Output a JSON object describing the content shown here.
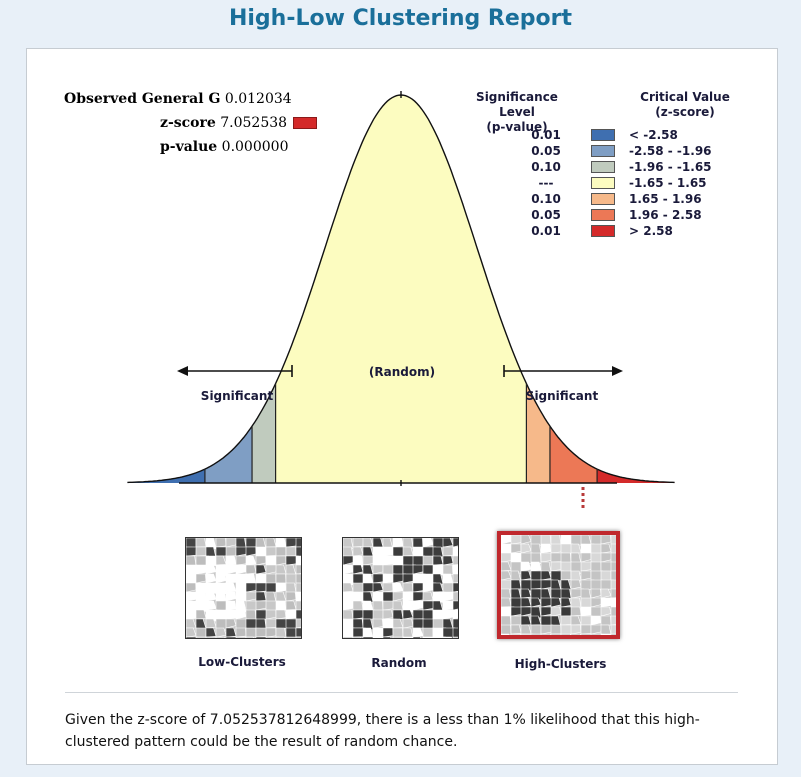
{
  "title": "High-Low Clustering Report",
  "stats": {
    "observed_label": "Observed General G",
    "observed_value": "0.012034",
    "z_label": "z-score",
    "z_value": "7.052538",
    "p_label": "p-value",
    "p_value": "0.000000"
  },
  "legend": {
    "sig_header_1": "Significance Level",
    "sig_header_2": "(p-value)",
    "crit_header_1": "Critical Value",
    "crit_header_2": "(z-score)",
    "rows": [
      {
        "p": "0.01",
        "color": "#3f6fb0",
        "cv": "< -2.58"
      },
      {
        "p": "0.05",
        "color": "#7f9ec4",
        "cv": "-2.58 - -1.96"
      },
      {
        "p": "0.10",
        "color": "#c0cbbe",
        "cv": "-1.96 - -1.65"
      },
      {
        "p": "---",
        "color": "#fcfcc0",
        "cv": "-1.65 - 1.65"
      },
      {
        "p": "0.10",
        "color": "#f6b98a",
        "cv": "1.65 - 1.96"
      },
      {
        "p": "0.05",
        "color": "#ec7856",
        "cv": "1.96 - 2.58"
      },
      {
        "p": "0.01",
        "color": "#d42a2a",
        "cv": "> 2.58"
      }
    ]
  },
  "curve_labels": {
    "left": "Significant",
    "center": "(Random)",
    "right": "Significant"
  },
  "thumbnails": {
    "low": "Low-Clusters",
    "random": "Random",
    "high": "High-Clusters"
  },
  "summary": "Given the z-score of 7.052537812648999, there is a less than 1% likelihood that this high-clustered pattern could be the result of random chance."
}
